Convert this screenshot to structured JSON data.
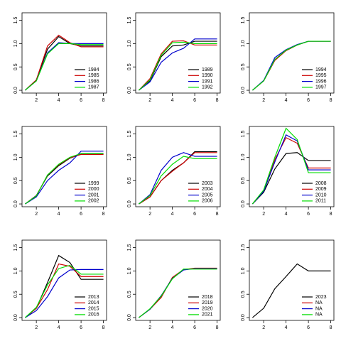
{
  "chart_data": [
    {
      "type": "line",
      "x": [
        1,
        2,
        3,
        4,
        5,
        6,
        7,
        8
      ],
      "xlim": [
        0.72,
        8.28
      ],
      "xticks": [
        2,
        4,
        6,
        8
      ],
      "ylim": [
        -0.06,
        1.66
      ],
      "yticks": [
        {
          "value": 0,
          "label": "0.0"
        },
        0.5,
        {
          "value": 1,
          "label": "1.0"
        },
        1.5
      ],
      "series": [
        {
          "name": "1984",
          "color": "#000000",
          "values": [
            0,
            0.22,
            0.88,
            1.15,
            1.0,
            0.95,
            0.95,
            0.95
          ]
        },
        {
          "name": "1985",
          "color": "#cc0000",
          "values": [
            0,
            0.22,
            0.95,
            1.18,
            1.02,
            0.93,
            0.93,
            0.93
          ]
        },
        {
          "name": "1986",
          "color": "#0000cc",
          "values": [
            0,
            0.2,
            0.8,
            1.02,
            1.0,
            1.0,
            1.0,
            1.0
          ]
        },
        {
          "name": "1987",
          "color": "#00dd00",
          "values": [
            0,
            0.2,
            0.78,
            1.0,
            1.0,
            0.98,
            0.98,
            0.98
          ]
        }
      ]
    },
    {
      "type": "line",
      "x": [
        1,
        2,
        3,
        4,
        5,
        6,
        7,
        8
      ],
      "xlim": [
        0.72,
        8.28
      ],
      "xticks": [
        2,
        4,
        6,
        8
      ],
      "ylim": [
        -0.06,
        1.66
      ],
      "yticks": [
        {
          "value": 0,
          "label": "0.0"
        },
        0.5,
        {
          "value": 1,
          "label": "1.0"
        },
        1.5
      ],
      "series": [
        {
          "name": "1989",
          "color": "#000000",
          "values": [
            0,
            0.2,
            0.72,
            0.95,
            0.97,
            1.05,
            1.05,
            1.05
          ]
        },
        {
          "name": "1990",
          "color": "#cc0000",
          "values": [
            0,
            0.25,
            0.78,
            1.05,
            1.06,
            0.97,
            0.97,
            0.97
          ]
        },
        {
          "name": "1991",
          "color": "#0000cc",
          "values": [
            0,
            0.18,
            0.6,
            0.8,
            0.9,
            1.1,
            1.1,
            1.1
          ]
        },
        {
          "name": "1992",
          "color": "#00dd00",
          "values": [
            0,
            0.22,
            0.75,
            1.02,
            1.03,
            1.0,
            1.0,
            1.0
          ]
        }
      ]
    },
    {
      "type": "line",
      "x": [
        1,
        2,
        3,
        4,
        5,
        6,
        7,
        8
      ],
      "xlim": [
        0.72,
        8.28
      ],
      "xticks": [
        2,
        4,
        6,
        8
      ],
      "ylim": [
        -0.06,
        1.66
      ],
      "yticks": [
        {
          "value": 0,
          "label": "0.0"
        },
        0.5,
        {
          "value": 1,
          "label": "1.0"
        },
        1.5
      ],
      "series": [
        {
          "name": "1994",
          "color": "#000000",
          "values": [
            0,
            0.2,
            0.65,
            0.85,
            0.97,
            1.05,
            1.05,
            1.05
          ]
        },
        {
          "name": "1995",
          "color": "#cc0000",
          "values": [
            0,
            0.2,
            0.64,
            0.85,
            0.97,
            1.05,
            1.05,
            1.05
          ]
        },
        {
          "name": "1996",
          "color": "#0000cc",
          "values": [
            0,
            0.21,
            0.7,
            0.87,
            0.98,
            1.05,
            1.05,
            1.05
          ]
        },
        {
          "name": "1997",
          "color": "#00dd00",
          "values": [
            0,
            0.2,
            0.66,
            0.86,
            0.97,
            1.05,
            1.05,
            1.05
          ]
        }
      ]
    },
    {
      "type": "line",
      "x": [
        1,
        2,
        3,
        4,
        5,
        6,
        7,
        8
      ],
      "xlim": [
        0.72,
        8.28
      ],
      "xticks": [
        2,
        4,
        6,
        8
      ],
      "ylim": [
        -0.06,
        1.66
      ],
      "yticks": [
        {
          "value": 0,
          "label": "0.0"
        },
        0.5,
        {
          "value": 1,
          "label": "1.0"
        },
        1.5
      ],
      "series": [
        {
          "name": "1999",
          "color": "#000000",
          "values": [
            0,
            0.18,
            0.6,
            0.82,
            0.98,
            1.07,
            1.07,
            1.07
          ]
        },
        {
          "name": "2000",
          "color": "#cc0000",
          "values": [
            0,
            0.17,
            0.62,
            0.84,
            0.99,
            1.06,
            1.06,
            1.06
          ]
        },
        {
          "name": "2001",
          "color": "#0000cc",
          "values": [
            0,
            0.15,
            0.5,
            0.72,
            0.88,
            1.13,
            1.13,
            1.13
          ]
        },
        {
          "name": "2002",
          "color": "#00dd00",
          "values": [
            0,
            0.17,
            0.62,
            0.85,
            1.0,
            1.08,
            1.08,
            1.08
          ]
        }
      ]
    },
    {
      "type": "line",
      "x": [
        1,
        2,
        3,
        4,
        5,
        6,
        7,
        8
      ],
      "xlim": [
        0.72,
        8.28
      ],
      "xticks": [
        2,
        4,
        6,
        8
      ],
      "ylim": [
        -0.06,
        1.66
      ],
      "yticks": [
        {
          "value": 0,
          "label": "0.0"
        },
        0.5,
        {
          "value": 1,
          "label": "1.0"
        },
        1.5
      ],
      "series": [
        {
          "name": "2003",
          "color": "#000000",
          "values": [
            0,
            0.15,
            0.5,
            0.72,
            0.88,
            1.12,
            1.12,
            1.12
          ]
        },
        {
          "name": "2004",
          "color": "#cc0000",
          "values": [
            0,
            0.15,
            0.5,
            0.7,
            0.88,
            1.1,
            1.1,
            1.1
          ]
        },
        {
          "name": "2005",
          "color": "#0000cc",
          "values": [
            0,
            0.2,
            0.72,
            1.0,
            1.1,
            1.02,
            1.02,
            1.02
          ]
        },
        {
          "name": "2006",
          "color": "#00dd00",
          "values": [
            0,
            0.18,
            0.6,
            0.85,
            1.02,
            0.97,
            0.97,
            0.97
          ]
        }
      ]
    },
    {
      "type": "line",
      "x": [
        1,
        2,
        3,
        4,
        5,
        6,
        7,
        8
      ],
      "xlim": [
        0.72,
        8.28
      ],
      "xticks": [
        2,
        4,
        6,
        8
      ],
      "ylim": [
        -0.06,
        1.66
      ],
      "yticks": [
        {
          "value": 0,
          "label": "0.0"
        },
        0.5,
        {
          "value": 1,
          "label": "1.0"
        },
        1.5
      ],
      "series": [
        {
          "name": "2008",
          "color": "#000000",
          "values": [
            0,
            0.25,
            0.75,
            1.08,
            1.1,
            0.93,
            0.93,
            0.93
          ]
        },
        {
          "name": "2009",
          "color": "#cc0000",
          "values": [
            0,
            0.28,
            0.95,
            1.42,
            1.3,
            0.77,
            0.77,
            0.77
          ]
        },
        {
          "name": "2010",
          "color": "#0000cc",
          "values": [
            0,
            0.27,
            0.9,
            1.48,
            1.35,
            0.73,
            0.73,
            0.73
          ]
        },
        {
          "name": "2011",
          "color": "#00dd00",
          "values": [
            0,
            0.3,
            1.0,
            1.62,
            1.38,
            0.67,
            0.67,
            0.67
          ]
        }
      ]
    },
    {
      "type": "line",
      "x": [
        1,
        2,
        3,
        4,
        5,
        6,
        7,
        8
      ],
      "xlim": [
        0.72,
        8.28
      ],
      "xticks": [
        2,
        4,
        6,
        8
      ],
      "ylim": [
        -0.06,
        1.66
      ],
      "yticks": [
        {
          "value": 0,
          "label": "0.0"
        },
        0.5,
        {
          "value": 1,
          "label": "1.0"
        },
        1.5
      ],
      "series": [
        {
          "name": "2013",
          "color": "#000000",
          "values": [
            0,
            0.2,
            0.75,
            1.33,
            1.18,
            0.82,
            0.82,
            0.82
          ]
        },
        {
          "name": "2014",
          "color": "#cc0000",
          "values": [
            0,
            0.2,
            0.6,
            1.15,
            1.1,
            0.88,
            0.88,
            0.88
          ]
        },
        {
          "name": "2015",
          "color": "#0000cc",
          "values": [
            0,
            0.15,
            0.45,
            0.85,
            1.02,
            1.03,
            1.03,
            1.03
          ]
        },
        {
          "name": "2016",
          "color": "#00dd00",
          "values": [
            0,
            0.22,
            0.7,
            1.05,
            1.12,
            0.93,
            0.93,
            0.93
          ]
        }
      ]
    },
    {
      "type": "line",
      "x": [
        1,
        2,
        3,
        4,
        5,
        6,
        7,
        8
      ],
      "xlim": [
        0.72,
        8.28
      ],
      "xticks": [
        2,
        4,
        6,
        8
      ],
      "ylim": [
        -0.06,
        1.66
      ],
      "yticks": [
        {
          "value": 0,
          "label": "0.0"
        },
        0.5,
        {
          "value": 1,
          "label": "1.0"
        },
        1.5
      ],
      "series": [
        {
          "name": "2018",
          "color": "#000000",
          "values": [
            0,
            0.18,
            0.45,
            0.85,
            1.03,
            1.05,
            1.05,
            1.05
          ]
        },
        {
          "name": "2019",
          "color": "#cc0000",
          "values": [
            0,
            0.18,
            0.43,
            0.86,
            1.03,
            1.06,
            1.06,
            1.06
          ]
        },
        {
          "name": "2020",
          "color": "#0000cc",
          "values": [
            0,
            0.18,
            0.47,
            0.84,
            1.02,
            1.05,
            1.05,
            1.05
          ]
        },
        {
          "name": "2021",
          "color": "#00dd00",
          "values": [
            0,
            0.19,
            0.46,
            0.83,
            1.04,
            1.04,
            1.04,
            1.04
          ]
        }
      ]
    },
    {
      "type": "line",
      "x": [
        1,
        2,
        3,
        4,
        5,
        6,
        7,
        8
      ],
      "xlim": [
        0.72,
        8.28
      ],
      "xticks": [
        2,
        4,
        6,
        8
      ],
      "ylim": [
        -0.06,
        1.66
      ],
      "yticks": [
        {
          "value": 0,
          "label": "0.0"
        },
        0.5,
        {
          "value": 1,
          "label": "1.0"
        },
        1.5
      ],
      "series": [
        {
          "name": "2023",
          "color": "#000000",
          "values": [
            0,
            0.2,
            0.62,
            0.88,
            1.15,
            1.0,
            1.0,
            1.0
          ]
        },
        {
          "name": "NA",
          "color": "#cc0000",
          "values": [
            null,
            null,
            null,
            null,
            null,
            null,
            null,
            null
          ]
        },
        {
          "name": "NA",
          "color": "#0000cc",
          "values": [
            null,
            null,
            null,
            null,
            null,
            null,
            null,
            null
          ]
        },
        {
          "name": "NA",
          "color": "#00dd00",
          "values": [
            null,
            null,
            null,
            null,
            null,
            null,
            null,
            null
          ]
        }
      ]
    }
  ]
}
